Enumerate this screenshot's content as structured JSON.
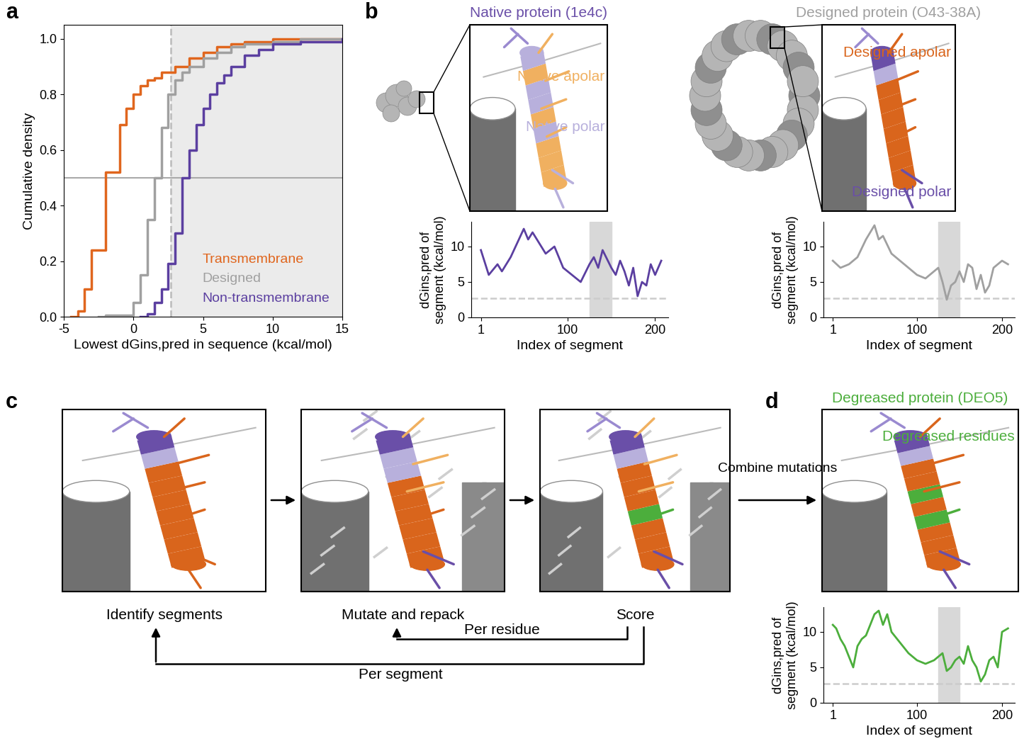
{
  "panel_letters": [
    "a",
    "b",
    "c",
    "d"
  ],
  "chart_data": [
    {
      "type": "step",
      "xlabel": "Lowest dGins,pred in sequence (kcal/mol)",
      "ylabel": "Cumulative density",
      "xlim": [
        -5,
        15
      ],
      "xticks": [
        -5,
        0,
        5,
        10,
        15
      ],
      "ylim": [
        0,
        1.05
      ],
      "yticks": [
        {
          "value": 0,
          "label": "0.0"
        },
        {
          "value": 0.2,
          "label": "0.2"
        },
        {
          "value": 0.4,
          "label": "0.4"
        },
        {
          "value": 0.6,
          "label": "0.6"
        },
        {
          "value": 0.8,
          "label": "0.8"
        },
        {
          "value": 1,
          "label": "1.0"
        }
      ],
      "threshold_x": 2.7,
      "reference_y": 0.5,
      "legend": "lower right",
      "series": [
        {
          "name": "Transmembrane",
          "color": "#e0661e",
          "x": [
            -4.5,
            -4,
            -3.5,
            -3,
            -2,
            -1,
            -0.5,
            0,
            0.5,
            1,
            1.5,
            2,
            3,
            4,
            5,
            6,
            7,
            8,
            10,
            15
          ],
          "values": [
            0,
            0.02,
            0.1,
            0.24,
            0.52,
            0.69,
            0.75,
            0.8,
            0.83,
            0.85,
            0.86,
            0.88,
            0.9,
            0.93,
            0.95,
            0.97,
            0.98,
            0.99,
            1.0,
            1.0
          ]
        },
        {
          "name": "Designed",
          "color": "#a0a0a0",
          "x": [
            -2.5,
            -2,
            0,
            0.5,
            1,
            1.5,
            2,
            2.5,
            3,
            3.5,
            4,
            5,
            6,
            7,
            8,
            10,
            12,
            15
          ],
          "values": [
            0,
            0.005,
            0.05,
            0.15,
            0.35,
            0.5,
            0.68,
            0.8,
            0.85,
            0.88,
            0.9,
            0.93,
            0.95,
            0.97,
            0.98,
            0.99,
            1.0,
            1.0
          ]
        },
        {
          "name": "Non-transmembrane",
          "color": "#5b3fa0",
          "x": [
            0.5,
            1,
            1.5,
            2,
            2.5,
            3,
            3.5,
            4,
            4.5,
            5,
            5.5,
            6,
            6.5,
            7,
            8,
            9,
            10,
            12,
            15
          ],
          "values": [
            0,
            0.01,
            0.05,
            0.1,
            0.19,
            0.3,
            0.5,
            0.6,
            0.69,
            0.75,
            0.8,
            0.84,
            0.87,
            0.9,
            0.94,
            0.96,
            0.98,
            0.99,
            1.0
          ]
        }
      ]
    },
    {
      "type": "line",
      "xlabel": "Index of segment",
      "ylabel": "dGins,pred of\nsegment (kcal/mol)",
      "xlim": [
        -10,
        215
      ],
      "xticks": [
        1,
        100,
        200
      ],
      "ylim": [
        0,
        13.5
      ],
      "yticks": [
        0,
        5,
        10
      ],
      "threshold": 2.7,
      "highlight": [
        125,
        150
      ],
      "color": "#5b3fa0",
      "x": [
        1,
        10,
        20,
        25,
        35,
        50,
        55,
        60,
        70,
        75,
        85,
        95,
        105,
        115,
        125,
        130,
        135,
        140,
        150,
        155,
        160,
        165,
        170,
        175,
        180,
        185,
        190,
        195,
        200,
        207
      ],
      "values": [
        9.5,
        6,
        7.5,
        6.5,
        8.5,
        12.5,
        11,
        12,
        10,
        9,
        10,
        7,
        6,
        5,
        7.5,
        8.5,
        7,
        9.5,
        7,
        6,
        8,
        6.5,
        4.5,
        7,
        3,
        5,
        4.5,
        7.5,
        6,
        8
      ]
    },
    {
      "type": "line",
      "xlabel": "Index of segment",
      "ylabel": "dGins,pred of\nsegment (kcal/mol)",
      "xlim": [
        -10,
        215
      ],
      "xticks": [
        1,
        100,
        200
      ],
      "ylim": [
        0,
        13.5
      ],
      "yticks": [
        0,
        5,
        10
      ],
      "threshold": 2.7,
      "highlight": [
        125,
        150
      ],
      "color": "#a0a0a0",
      "x": [
        1,
        10,
        20,
        30,
        40,
        50,
        55,
        60,
        70,
        80,
        90,
        100,
        110,
        120,
        125,
        130,
        135,
        140,
        145,
        150,
        155,
        160,
        165,
        170,
        175,
        180,
        185,
        190,
        200,
        207
      ],
      "values": [
        8,
        7,
        7.5,
        8.5,
        11,
        13,
        11,
        11.5,
        9,
        8,
        7,
        6,
        5.5,
        6.5,
        7,
        5,
        2.5,
        4.5,
        5,
        6.5,
        5,
        7.5,
        7,
        4,
        6,
        3.5,
        4.5,
        7,
        8,
        7.5
      ]
    },
    {
      "type": "line",
      "xlabel": "Index of segment",
      "ylabel": "dGins,pred of\nsegment (kcal/mol)",
      "xlim": [
        -10,
        215
      ],
      "xticks": [
        1,
        100,
        200
      ],
      "ylim": [
        0,
        13.5
      ],
      "yticks": [
        0,
        5,
        10
      ],
      "threshold": 2.7,
      "highlight": [
        125,
        150
      ],
      "color": "#4cae3c",
      "x": [
        1,
        5,
        10,
        15,
        20,
        25,
        30,
        35,
        40,
        45,
        50,
        55,
        60,
        65,
        70,
        80,
        90,
        100,
        110,
        120,
        125,
        130,
        135,
        140,
        145,
        150,
        155,
        160,
        165,
        170,
        175,
        180,
        185,
        190,
        195,
        200,
        207
      ],
      "values": [
        11,
        10.5,
        9,
        8,
        6.5,
        5,
        8,
        9,
        9.5,
        11,
        12.5,
        13,
        11,
        12.5,
        10,
        8.5,
        7,
        6,
        5.5,
        6,
        6.5,
        7,
        4.5,
        5,
        6,
        6.5,
        5.5,
        8,
        6,
        5,
        3,
        4,
        6,
        6.5,
        5,
        10,
        10.5
      ]
    }
  ],
  "diagram": {
    "native_view": {
      "title": "Native protein (1e4c)",
      "apolar": "Native apolar",
      "polar": "Native polar"
    },
    "designed_view": {
      "title": "Designed protein (O43-38A)",
      "apolar": "Designed apolar",
      "polar": "Designed polar"
    },
    "steps": [
      "Identify segments",
      "Mutate and repack",
      "Score"
    ],
    "loops": [
      "Per residue",
      "Per segment"
    ],
    "combine": "Combine mutations",
    "degreased_view": {
      "title": "Degreased protein (DEO5)",
      "residues": "Degreased residues"
    }
  }
}
